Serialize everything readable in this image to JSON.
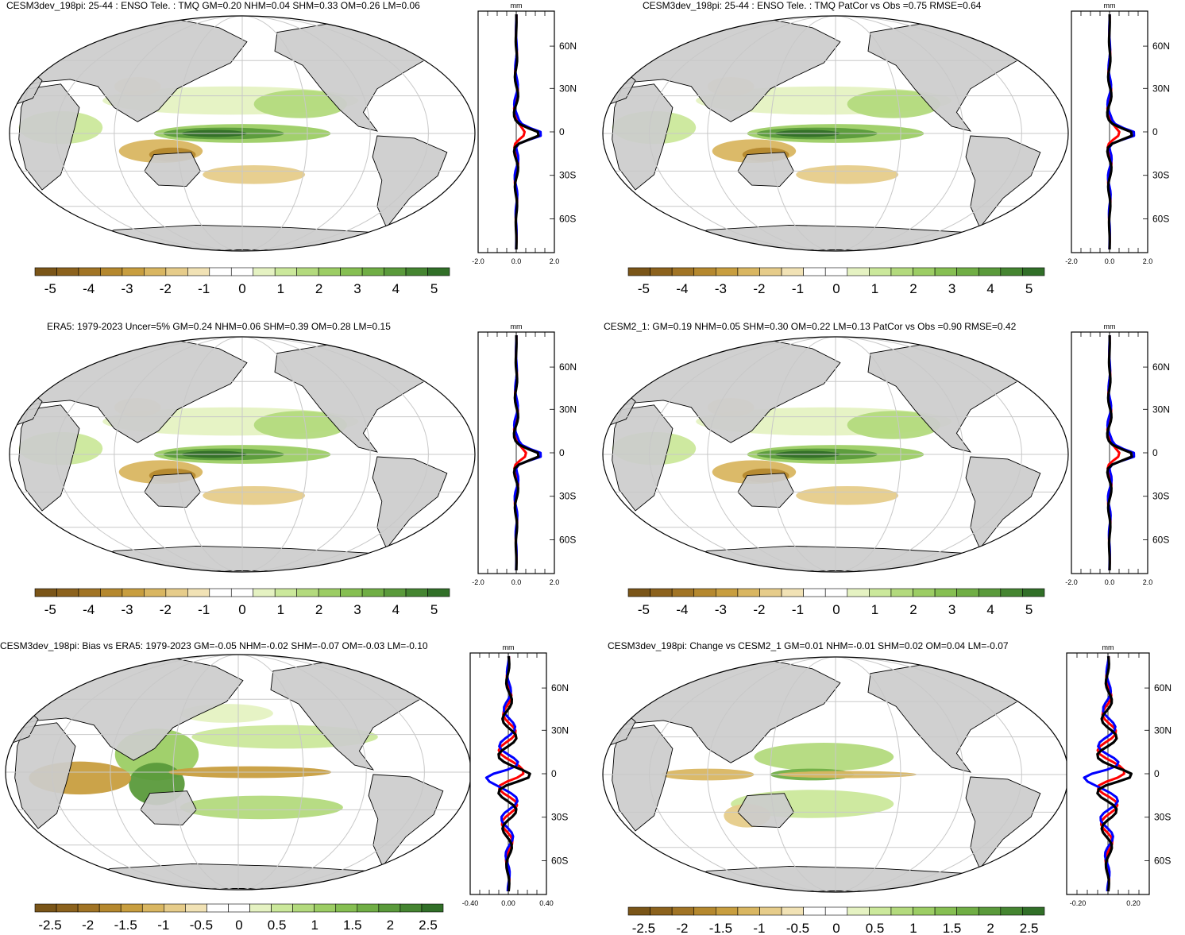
{
  "panels": [
    {
      "title": "CESM3dev_198pi: 25-44 : ENSO Tele. : TMQ GM=0.20 NHM=0.04 SHM=0.33 OM=0.26 LM=0.06",
      "kind": "abs"
    },
    {
      "title": "CESM3dev_198pi: 25-44 : ENSO Tele. : TMQ PatCor vs Obs =0.75 RMSE=0.64",
      "kind": "abs"
    },
    {
      "title": "ERA5: 1979-2023 Uncer=5% GM=0.24 NHM=0.06 SHM=0.39 OM=0.28 LM=0.15",
      "kind": "abs"
    },
    {
      "title": "CESM2_1: GM=0.19 NHM=0.05 SHM=0.30 OM=0.22 LM=0.13 PatCor vs Obs =0.90 RMSE=0.42",
      "kind": "abs"
    },
    {
      "title": "CESM3dev_198pi: Bias vs ERA5: 1979-2023 GM=-0.05 NHM=-0.02 SHM=-0.07 OM=-0.03 LM=-0.10",
      "kind": "diff"
    },
    {
      "title": "CESM3dev_198pi: Change vs CESM2_1 GM=0.01 NHM=-0.01 SHM=0.02 OM=0.04 LM=-0.07",
      "kind": "diff"
    }
  ],
  "profile": {
    "unit": "mm",
    "lat_labels": [
      "60N",
      "30N",
      "0",
      "30S",
      "60S"
    ],
    "abs_x_ticks": [
      "-2.0",
      "0.0",
      "2.0"
    ],
    "bias_x_ticks": [
      "-0.40",
      "0.00",
      "0.40"
    ],
    "change_x_ticks": [
      "-0.20",
      "0.20"
    ]
  },
  "colorbar": {
    "abs_labels": [
      "-5",
      "-4",
      "-3",
      "-2",
      "-1",
      "0",
      "1",
      "2",
      "3",
      "4",
      "5"
    ],
    "diff_labels": [
      "-2.5",
      "-2",
      "-1.5",
      "-1",
      "-0.5",
      "0",
      "0.5",
      "1",
      "1.5",
      "2",
      "2.5"
    ],
    "colors": [
      "#7a5518",
      "#8c621d",
      "#a17425",
      "#b5882e",
      "#c89e3f",
      "#d9b661",
      "#e6cc8a",
      "#f1e2b5",
      "#ffffff",
      "#ffffff",
      "#e5f2c2",
      "#cbe89b",
      "#b3da7d",
      "#9ccd64",
      "#86bf52",
      "#70ae45",
      "#5a9a3b",
      "#458531",
      "#316f28"
    ]
  },
  "colors": {
    "land": "#cccccc",
    "coast": "#000000",
    "grid": "#c8c8c8",
    "model_line": "#ff0000",
    "obs_line": "#0000ff",
    "mean_line": "#000000"
  }
}
